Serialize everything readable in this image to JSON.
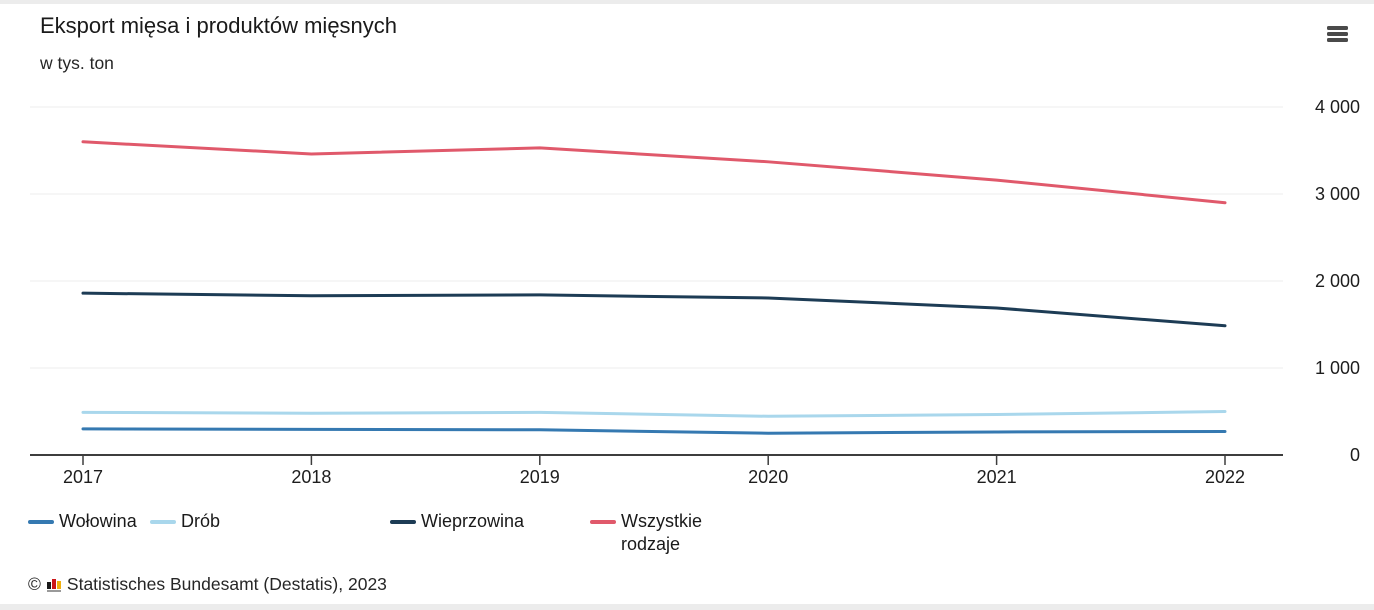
{
  "chart_data": {
    "type": "line",
    "title": "Eksport mięsa i produktów mięsnych",
    "subtitle": "w tys. ton",
    "x": [
      "2017",
      "2018",
      "2019",
      "2020",
      "2021",
      "2022"
    ],
    "series": [
      {
        "name": "Wołowina",
        "slug": "wolowina",
        "color": "#3579b1",
        "wrap": false,
        "values": [
          300,
          295,
          290,
          250,
          265,
          270
        ]
      },
      {
        "name": "Drób",
        "slug": "drob",
        "color": "#a9d7ec",
        "wrap": false,
        "values": [
          490,
          480,
          490,
          445,
          465,
          500
        ]
      },
      {
        "name": "Wieprzowina",
        "slug": "wieprzowina",
        "color": "#1d3c55",
        "wrap": false,
        "values": [
          1860,
          1830,
          1840,
          1805,
          1690,
          1485
        ]
      },
      {
        "name": "Wszystkie rodzaje",
        "slug": "wszystkie-rodzaje",
        "color": "#e0596b",
        "wrap": true,
        "values": [
          3600,
          3460,
          3530,
          3370,
          3160,
          2900
        ]
      }
    ],
    "ylim": [
      0,
      4000
    ],
    "yticks": [
      0,
      1000,
      2000,
      3000,
      4000
    ],
    "ytick_labels": [
      "0",
      "1 000",
      "2 000",
      "3 000",
      "4 000"
    ],
    "grid": "horizontal",
    "grid_color": "#ededed",
    "axis_color": "#3d3d3d",
    "legend_position": "bottom"
  },
  "icons": {
    "menu": "hamburger-menu-icon",
    "logo": "destatis-bar-chart-logo-icon"
  },
  "footer": {
    "copyright": "©",
    "source": "Statistisches Bundesamt (Destatis), 2023"
  }
}
